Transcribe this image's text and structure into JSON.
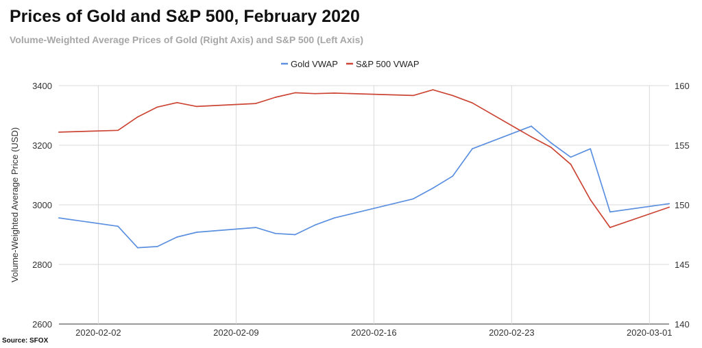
{
  "header": {
    "title": "Prices of Gold and S&P 500, February 2020",
    "subtitle": "Volume-Weighted Average Prices of Gold (Right Axis) and S&P 500 (Left Axis)"
  },
  "footer": {
    "source": "Source: SFOX"
  },
  "chart_data": {
    "type": "line",
    "title": "Prices of Gold and S&P 500, February 2020",
    "subtitle": "Volume-Weighted Average Prices of Gold (Right Axis) and S&P 500 (Left Axis)",
    "ylabel": "Volume-Weighted Average Price (USD)",
    "xlabel": "",
    "legend_position": "top-center",
    "grid": true,
    "x_ticks": [
      "2020-02-02",
      "2020-02-09",
      "2020-02-16",
      "2020-02-23",
      "2020-03-01"
    ],
    "y_left_ticks": [
      "2600",
      "2800",
      "3000",
      "3200",
      "3400"
    ],
    "y_right_ticks": [
      "140",
      "145",
      "150",
      "155",
      "160"
    ],
    "ylim_left": [
      2600,
      3400
    ],
    "ylim_right": [
      140,
      160
    ],
    "xlim": [
      "2020-01-31",
      "2020-03-02"
    ],
    "series": [
      {
        "name": "Gold VWAP",
        "axis": "right",
        "color": "#5b8fe0",
        "points": [
          [
            "2020-01-31",
            148.9
          ],
          [
            "2020-02-03",
            148.2
          ],
          [
            "2020-02-04",
            146.4
          ],
          [
            "2020-02-05",
            146.5
          ],
          [
            "2020-02-06",
            147.3
          ],
          [
            "2020-02-07",
            147.7
          ],
          [
            "2020-02-10",
            148.1
          ],
          [
            "2020-02-11",
            147.6
          ],
          [
            "2020-02-12",
            147.5
          ],
          [
            "2020-02-13",
            148.3
          ],
          [
            "2020-02-14",
            148.9
          ],
          [
            "2020-02-18",
            150.5
          ],
          [
            "2020-02-19",
            151.4
          ],
          [
            "2020-02-20",
            152.4
          ],
          [
            "2020-02-21",
            154.7
          ],
          [
            "2020-02-24",
            156.6
          ],
          [
            "2020-02-25",
            155.2
          ],
          [
            "2020-02-26",
            154.0
          ],
          [
            "2020-02-27",
            154.7
          ],
          [
            "2020-02-28",
            149.4
          ],
          [
            "2020-03-02",
            150.1
          ]
        ]
      },
      {
        "name": "S&P 500 VWAP",
        "axis": "left",
        "color": "#cc4433",
        "points": [
          [
            "2020-01-31",
            3244
          ],
          [
            "2020-02-03",
            3250
          ],
          [
            "2020-02-04",
            3295
          ],
          [
            "2020-02-05",
            3328
          ],
          [
            "2020-02-06",
            3343
          ],
          [
            "2020-02-07",
            3330
          ],
          [
            "2020-02-10",
            3340
          ],
          [
            "2020-02-11",
            3361
          ],
          [
            "2020-02-12",
            3376
          ],
          [
            "2020-02-13",
            3373
          ],
          [
            "2020-02-14",
            3375
          ],
          [
            "2020-02-18",
            3367
          ],
          [
            "2020-02-19",
            3386
          ],
          [
            "2020-02-20",
            3367
          ],
          [
            "2020-02-21",
            3342
          ],
          [
            "2020-02-24",
            3228
          ],
          [
            "2020-02-25",
            3193
          ],
          [
            "2020-02-26",
            3136
          ],
          [
            "2020-02-27",
            3017
          ],
          [
            "2020-02-28",
            2924
          ],
          [
            "2020-03-02",
            2992
          ]
        ]
      }
    ]
  }
}
